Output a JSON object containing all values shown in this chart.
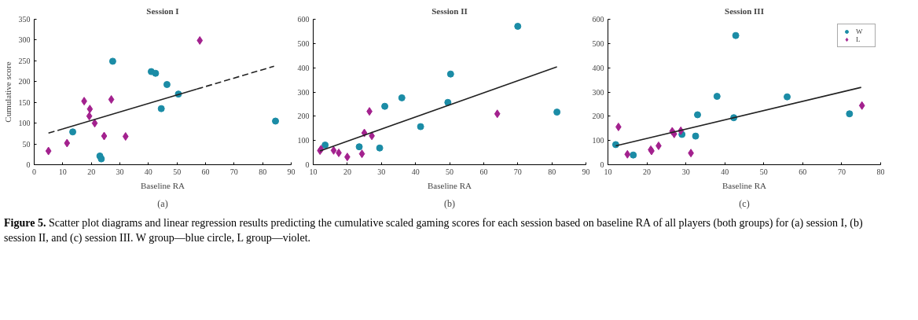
{
  "chart_data": [
    {
      "type": "scatter",
      "title": "Session I",
      "xlabel": "Baseline RA",
      "ylabel": "Cumulative score",
      "xlim": [
        0,
        90
      ],
      "ylim": [
        0,
        350
      ],
      "xticks": [
        0,
        10,
        20,
        30,
        40,
        50,
        60,
        70,
        80,
        90
      ],
      "yticks": [
        0,
        50,
        100,
        150,
        200,
        250,
        300,
        350
      ],
      "grid": false,
      "legend": false,
      "annotations": [
        "(a)"
      ],
      "series": [
        {
          "color": "#1b8ca6",
          "marker": "circle",
          "x": [
            13.5,
            23,
            23.5,
            27.5,
            41,
            42.5,
            44.5,
            46.5,
            50.5,
            84.5
          ],
          "values": [
            79,
            21,
            14,
            249,
            224,
            220,
            135,
            193,
            170,
            105
          ]
        },
        {
          "color": "#a3218e",
          "marker": "diamond",
          "x": [
            5,
            11.5,
            17.5,
            19.5,
            19.3,
            21.2,
            24.5,
            27,
            32,
            58
          ],
          "values": [
            33,
            52,
            153,
            134,
            117,
            100,
            69,
            157,
            68,
            299
          ]
        },
        {
          "type": "line",
          "color": "#222222",
          "line_style": "dashed",
          "x": [
            5,
            10
          ],
          "values": [
            76,
            86
          ]
        },
        {
          "type": "line",
          "color": "#222222",
          "line_style": "solid",
          "x": [
            10,
            57
          ],
          "values": [
            86,
            182
          ]
        },
        {
          "type": "line",
          "color": "#222222",
          "line_style": "dashed",
          "x": [
            57,
            84
          ],
          "values": [
            182,
            237
          ]
        }
      ]
    },
    {
      "type": "scatter",
      "title": "Session II",
      "xlabel": "Baseline RA",
      "xlim": [
        10,
        90
      ],
      "ylim": [
        0,
        600
      ],
      "xticks": [
        10,
        20,
        30,
        40,
        50,
        60,
        70,
        80,
        90
      ],
      "yticks": [
        0,
        100,
        200,
        300,
        400,
        500,
        600
      ],
      "grid": false,
      "legend": false,
      "annotations": [
        "(b)"
      ],
      "series": [
        {
          "color": "#1b8ca6",
          "marker": "circle",
          "x": [
            13.5,
            23.5,
            29.5,
            31,
            36,
            41.5,
            49.5,
            50.3,
            70,
            81.5
          ],
          "values": [
            81,
            74,
            69,
            241,
            276,
            157,
            257,
            374,
            571,
            217
          ]
        },
        {
          "color": "#a3218e",
          "marker": "diamond",
          "x": [
            12,
            12.3,
            16,
            17.5,
            20,
            24.3,
            25,
            26.5,
            27.2,
            64
          ],
          "values": [
            58,
            64,
            59,
            49,
            32,
            45,
            131,
            220,
            119,
            210
          ]
        },
        {
          "type": "line",
          "color": "#222222",
          "line_style": "solid",
          "x": [
            12,
            81.5
          ],
          "values": [
            57,
            404
          ]
        }
      ]
    },
    {
      "type": "scatter",
      "title": "Session III",
      "xlabel": "Baseline RA",
      "xlim": [
        10,
        80
      ],
      "ylim": [
        0,
        600
      ],
      "xticks": [
        10,
        20,
        30,
        40,
        50,
        60,
        70,
        80
      ],
      "yticks": [
        0,
        100,
        200,
        300,
        400,
        500,
        600
      ],
      "grid": false,
      "legend": "top right",
      "annotations": [
        "(c)"
      ],
      "series": [
        {
          "name": "W",
          "color": "#1b8ca6",
          "marker": "circle",
          "x": [
            12,
            16.5,
            29,
            32.5,
            33,
            38,
            42.3,
            42.8,
            56,
            72
          ],
          "values": [
            83,
            40,
            125,
            118,
            206,
            282,
            194,
            533,
            280,
            210
          ]
        },
        {
          "name": "L",
          "color": "#a3218e",
          "marker": "diamond",
          "x": [
            12.7,
            15,
            21,
            21.2,
            23,
            26.5,
            27,
            28.7,
            31.3,
            75.2
          ],
          "values": [
            156,
            43,
            62,
            57,
            78,
            138,
            127,
            140,
            48,
            244
          ]
        },
        {
          "type": "line",
          "color": "#222222",
          "line_style": "solid",
          "x": [
            12,
            75
          ],
          "values": [
            78,
            319
          ]
        }
      ]
    },
    {
      "type": "other",
      "annotations": [
        "Figure 5.",
        "Scatter plot diagrams and linear regression results predicting the cumulative scaled gaming scores for each session based on baseline RA of all players (both groups) for (a) session I, (b) session II, and (c) session III. W group—blue circle, L group—violet."
      ]
    }
  ]
}
